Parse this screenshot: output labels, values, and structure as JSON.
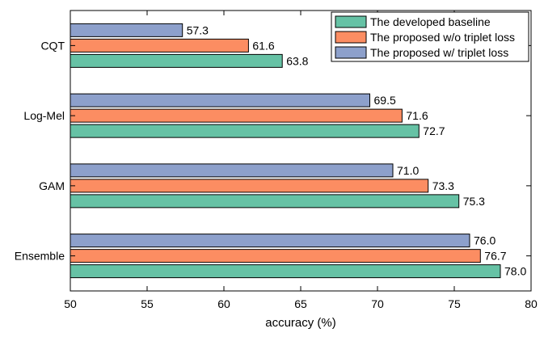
{
  "chart_data": {
    "type": "bar",
    "orientation": "horizontal",
    "categories": [
      "CQT",
      "Log-Mel",
      "GAM",
      "Ensemble"
    ],
    "series": [
      {
        "name": "The developed baseline",
        "color": "#66c2a5",
        "values": [
          63.8,
          72.7,
          75.3,
          78.0
        ],
        "labels": [
          "63.8",
          "72.7",
          "75.3",
          "78.0"
        ]
      },
      {
        "name": "The proposed w/o triplet loss",
        "color": "#fc8d62",
        "values": [
          61.6,
          71.6,
          73.3,
          76.7
        ],
        "labels": [
          "61.6",
          "71.6",
          "73.3",
          "76.7"
        ]
      },
      {
        "name": "The proposed w/ triplet loss",
        "color": "#8da0cb",
        "values": [
          57.3,
          69.5,
          71.0,
          76.0
        ],
        "labels": [
          "57.3",
          "69.5",
          "71.0",
          "76.0"
        ]
      }
    ],
    "xlabel": "accuracy (%)",
    "ylabel": "",
    "title": "",
    "xlim": [
      50,
      80
    ],
    "xticks": [
      "50",
      "55",
      "60",
      "65",
      "70",
      "75",
      "80"
    ],
    "grid": false,
    "legend_position": "top-right"
  }
}
